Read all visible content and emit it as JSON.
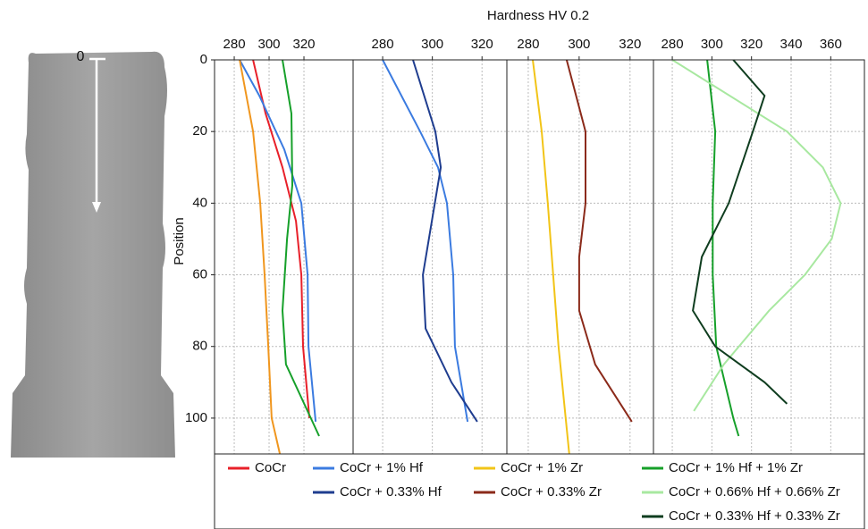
{
  "specimen_label": "0",
  "chart_data": {
    "type": "line",
    "x_label": "Hardness HV 0.2",
    "y_label": "Position",
    "ylim": [
      0,
      110
    ],
    "y_inverted": true,
    "yticks": [
      0,
      20,
      40,
      60,
      80,
      100
    ],
    "grid": true,
    "panels": [
      {
        "xlim": [
          268.7,
          348.2
        ],
        "xticks": [
          280,
          300,
          320
        ],
        "series": [
          {
            "color": "#e8202a",
            "positions": [
              0,
              15,
              30,
              45,
              60,
              80,
              100
            ],
            "values": [
              290.8,
              298.0,
              307.7,
              315.4,
              318.5,
              319.5,
              323.1
            ]
          },
          {
            "color": "#3b7be0",
            "positions": [
              0,
              10,
              25,
              40,
              60,
              80,
              101
            ],
            "values": [
              283.1,
              294.4,
              308.7,
              318.5,
              322.1,
              322.6,
              326.7
            ]
          },
          {
            "color": "#f0961e",
            "positions": [
              0,
              20,
              40,
              60,
              80,
              100,
              110
            ],
            "values": [
              283.1,
              290.8,
              294.9,
              297.4,
              299.5,
              301.5,
              306.2
            ]
          },
          {
            "color": "#16a02a",
            "positions": [
              0,
              15,
              35,
              50,
              70,
              85,
              105
            ],
            "values": [
              307.7,
              312.8,
              313.3,
              310.3,
              307.7,
              309.7,
              328.7
            ]
          }
        ]
      },
      {
        "xlim": [
          268.1,
          330
        ],
        "xticks": [
          280,
          300,
          320
        ],
        "series": [
          {
            "color": "#3b7be0",
            "positions": [
              0,
              20,
              30,
              40,
              60,
              80,
              101
            ],
            "values": [
              280,
              295.1,
              302.3,
              305.9,
              308.4,
              309.1,
              314.2
            ]
          },
          {
            "color": "#1f3d8f",
            "positions": [
              0,
              20,
              30,
              45,
              60,
              75,
              90,
              101
            ],
            "values": [
              292.2,
              301.2,
              303.4,
              299.8,
              296.2,
              297.3,
              307.7,
              318.1
            ]
          }
        ]
      },
      {
        "xlim": [
          271.6,
          329.2
        ],
        "xticks": [
          280,
          300,
          320
        ],
        "series": [
          {
            "color": "#f2c417",
            "positions": [
              0,
              20,
              40,
              60,
              80,
              100,
              110
            ],
            "values": [
              281.8,
              285.3,
              287.7,
              289.8,
              291.9,
              294.7,
              296.1
            ]
          },
          {
            "color": "#8b2a1a",
            "positions": [
              0,
              20,
              40,
              55,
              70,
              85,
              101
            ],
            "values": [
              295.1,
              302.5,
              302.5,
              300,
              300,
              306.3,
              320.7
            ]
          }
        ]
      },
      {
        "xlim": [
          270.5,
          377
        ],
        "xticks": [
          280,
          300,
          320,
          340,
          360
        ],
        "series": [
          {
            "color": "#16a02a",
            "positions": [
              0,
              20,
              40,
              60,
              80,
              100,
              105
            ],
            "values": [
              297.6,
              301.7,
              300.4,
              300.4,
              302.2,
              310.8,
              313.5
            ]
          },
          {
            "color": "#a8e8a0",
            "positions": [
              0,
              20,
              30,
              40,
              50,
              60,
              70,
              85,
              98
            ],
            "values": [
              280,
              337.9,
              356,
              365,
              360.5,
              347,
              328.9,
              306,
              290.9
            ]
          },
          {
            "color": "#0f3d1f",
            "positions": [
              0,
              10,
              20,
              40,
              55,
              70,
              80,
              90,
              96
            ],
            "values": [
              310.8,
              326.6,
              320.7,
              308.5,
              294.9,
              290.4,
              301.7,
              326.6,
              337.9
            ]
          }
        ]
      }
    ],
    "legend": [
      {
        "name": "CoCr",
        "color": "#e8202a"
      },
      {
        "name": "CoCr + 1% Hf",
        "color": "#3b7be0"
      },
      {
        "name": "CoCr + 1% Zr",
        "color": "#f2c417"
      },
      {
        "name": "CoCr + 1% Hf + 1% Zr",
        "color": "#16a02a"
      },
      {
        "name": "CoCr + 0.33% Hf",
        "color": "#1f3d8f"
      },
      {
        "name": "CoCr + 0.33% Zr",
        "color": "#8b2a1a"
      },
      {
        "name": "CoCr + 0.66% Hf + 0.66% Zr",
        "color": "#a8e8a0"
      },
      {
        "name": "CoCr + 0.33% Hf + 0.33% Zr",
        "color": "#0f3d1f"
      }
    ]
  }
}
